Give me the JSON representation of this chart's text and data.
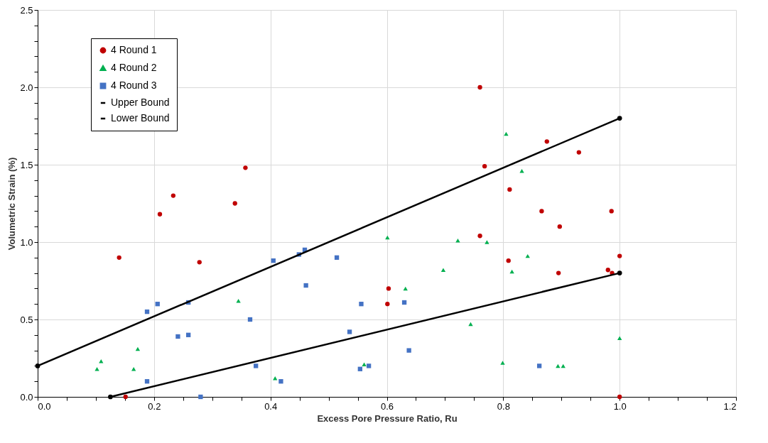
{
  "chart_data": {
    "type": "scatter",
    "xlabel": "Excess Pore Pressure Ratio, Ru",
    "ylabel": "Volumetric Strain (%)",
    "xlim": [
      0,
      1.2
    ],
    "ylim": [
      0,
      2.5
    ],
    "xticks": [
      {
        "value": 0,
        "label": "0.0"
      },
      {
        "value": 0.05,
        "label": null
      },
      {
        "value": 0.1,
        "label": null
      },
      {
        "value": 0.15,
        "label": null
      },
      {
        "value": 0.2,
        "label": "0.2"
      },
      {
        "value": 0.25,
        "label": null
      },
      {
        "value": 0.3,
        "label": null
      },
      {
        "value": 0.35,
        "label": null
      },
      {
        "value": 0.4,
        "label": "0.4"
      },
      {
        "value": 0.45,
        "label": null
      },
      {
        "value": 0.5,
        "label": null
      },
      {
        "value": 0.55,
        "label": null
      },
      {
        "value": 0.6,
        "label": "0.6"
      },
      {
        "value": 0.65,
        "label": null
      },
      {
        "value": 0.7,
        "label": null
      },
      {
        "value": 0.75,
        "label": null
      },
      {
        "value": 0.8,
        "label": "0.8"
      },
      {
        "value": 0.85,
        "label": null
      },
      {
        "value": 0.9,
        "label": null
      },
      {
        "value": 0.95,
        "label": null
      },
      {
        "value": 1,
        "label": "1.0"
      },
      {
        "value": 1.05,
        "label": null
      },
      {
        "value": 1.1,
        "label": null
      },
      {
        "value": 1.15,
        "label": null
      },
      {
        "value": 1.2,
        "label": "1.2"
      }
    ],
    "yticks": [
      {
        "value": 0,
        "label": "0.0"
      },
      {
        "value": 0.1,
        "label": null
      },
      {
        "value": 0.2,
        "label": null
      },
      {
        "value": 0.3,
        "label": null
      },
      {
        "value": 0.4,
        "label": null
      },
      {
        "value": 0.5,
        "label": "0.5"
      },
      {
        "value": 0.6,
        "label": null
      },
      {
        "value": 0.7,
        "label": null
      },
      {
        "value": 0.8,
        "label": null
      },
      {
        "value": 0.9,
        "label": null
      },
      {
        "value": 1,
        "label": "1.0"
      },
      {
        "value": 1.1,
        "label": null
      },
      {
        "value": 1.2,
        "label": null
      },
      {
        "value": 1.3,
        "label": null
      },
      {
        "value": 1.4,
        "label": null
      },
      {
        "value": 1.5,
        "label": "1.5"
      },
      {
        "value": 1.6,
        "label": null
      },
      {
        "value": 1.7,
        "label": null
      },
      {
        "value": 1.8,
        "label": null
      },
      {
        "value": 1.9,
        "label": null
      },
      {
        "value": 2,
        "label": "2.0"
      },
      {
        "value": 2.1,
        "label": null
      },
      {
        "value": 2.2,
        "label": null
      },
      {
        "value": 2.3,
        "label": null
      },
      {
        "value": 2.4,
        "label": null
      },
      {
        "value": 2.5,
        "label": "2.5"
      }
    ],
    "grid": true,
    "legend": "top left",
    "series": [
      {
        "name": "4 Round 1",
        "color": "#c00000",
        "marker": "circle",
        "x": [
          0.14,
          0.21,
          0.233,
          0.278,
          0.339,
          0.357,
          0.151,
          0.76,
          0.768,
          0.76,
          0.603,
          0.601,
          0.875,
          0.93,
          0.811,
          0.866,
          0.986,
          0.897,
          0.809,
          0.895,
          0.98,
          0.987,
          1.0,
          1.0
        ],
        "values": [
          0.9,
          1.18,
          1.3,
          0.87,
          1.25,
          1.48,
          0.0,
          2.0,
          1.49,
          1.04,
          0.7,
          0.6,
          1.65,
          1.58,
          1.34,
          1.2,
          1.2,
          1.1,
          0.88,
          0.8,
          0.82,
          0.8,
          0.91,
          0.0
        ]
      },
      {
        "name": "4 Round 2",
        "color": "#00b050",
        "marker": "triangle",
        "x": [
          0.102,
          0.109,
          0.165,
          0.172,
          0.345,
          0.408,
          0.561,
          0.601,
          0.632,
          0.697,
          0.722,
          0.772,
          0.744,
          0.805,
          0.832,
          0.842,
          0.815,
          0.799,
          1.0,
          0.894,
          0.903
        ],
        "values": [
          0.18,
          0.23,
          0.18,
          0.31,
          0.62,
          0.12,
          0.21,
          1.03,
          0.7,
          0.82,
          1.01,
          1.0,
          0.47,
          1.7,
          1.46,
          0.91,
          0.81,
          0.22,
          0.38,
          0.2,
          0.2
        ]
      },
      {
        "name": "4 Round 3",
        "color": "#4472c4",
        "marker": "square",
        "x": [
          0.188,
          0.206,
          0.259,
          0.241,
          0.259,
          0.365,
          0.375,
          0.188,
          0.28,
          0.405,
          0.449,
          0.459,
          0.461,
          0.514,
          0.556,
          0.536,
          0.63,
          0.638,
          0.554,
          0.569,
          0.418,
          0.862
        ],
        "values": [
          0.55,
          0.6,
          0.61,
          0.39,
          0.4,
          0.5,
          0.2,
          0.1,
          0.0,
          0.88,
          0.92,
          0.95,
          0.72,
          0.9,
          0.6,
          0.42,
          0.61,
          0.3,
          0.18,
          0.2,
          0.1,
          0.2
        ]
      },
      {
        "name": "Upper Bound",
        "type": "line",
        "color": "#000000",
        "marker": "circle",
        "x": [
          0,
          1
        ],
        "values": [
          0.2,
          1.8
        ]
      },
      {
        "name": "Lower Bound",
        "type": "line",
        "color": "#000000",
        "marker": "circle",
        "x": [
          0.125,
          1
        ],
        "values": [
          0,
          0.8
        ]
      }
    ]
  }
}
